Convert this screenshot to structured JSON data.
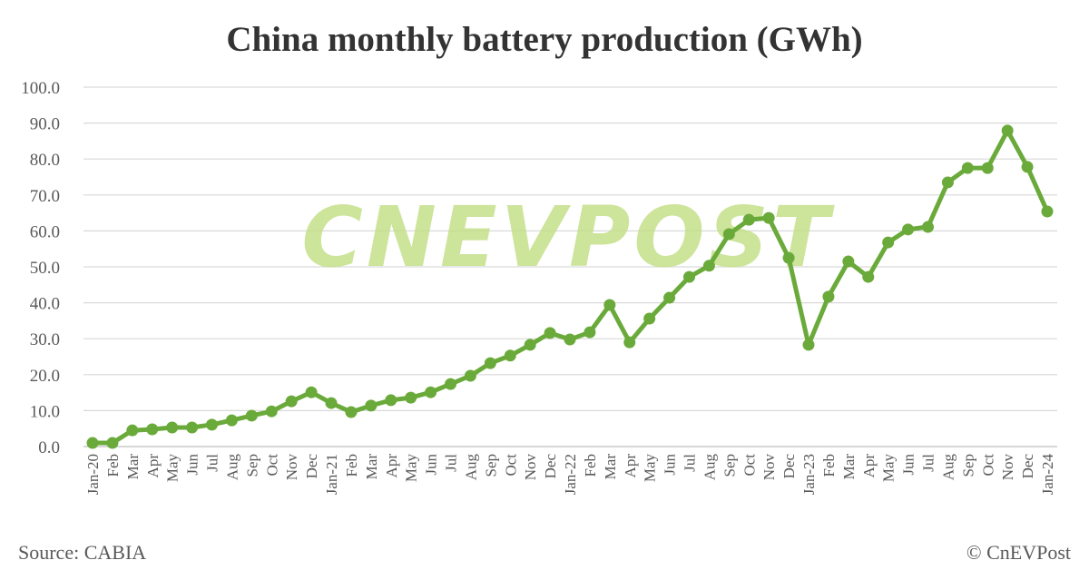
{
  "chart_data": {
    "type": "line",
    "title": "China monthly battery production (GWh)",
    "xlabel": "",
    "ylabel": "",
    "ylim": [
      0,
      100
    ],
    "yticks": [
      "0.0",
      "10.0",
      "20.0",
      "30.0",
      "40.0",
      "50.0",
      "60.0",
      "70.0",
      "80.0",
      "90.0",
      "100.0"
    ],
    "grid": true,
    "categories": [
      "Jan-20",
      "Feb",
      "Mar",
      "Apr",
      "May",
      "Jun",
      "Jul",
      "Aug",
      "Sep",
      "Oct",
      "Nov",
      "Dec",
      "Jan-21",
      "Feb",
      "Mar",
      "Apr",
      "May",
      "Jun",
      "Jul",
      "Aug",
      "Sep",
      "Oct",
      "Nov",
      "Dec",
      "Jan-22",
      "Feb",
      "Mar",
      "Apr",
      "May",
      "Jun",
      "Jul",
      "Aug",
      "Sep",
      "Oct",
      "Nov",
      "Dec",
      "Jan-23",
      "Feb",
      "Mar",
      "Apr",
      "May",
      "Jun",
      "Jul",
      "Aug",
      "Sep",
      "Oct",
      "Nov",
      "Dec",
      "Jan-24"
    ],
    "values": [
      1.0,
      1.0,
      4.5,
      4.8,
      5.3,
      5.3,
      6.1,
      7.3,
      8.6,
      9.8,
      12.6,
      15.1,
      12.1,
      9.6,
      11.4,
      12.9,
      13.6,
      15.1,
      17.4,
      19.7,
      23.2,
      25.3,
      28.3,
      31.6,
      29.8,
      31.8,
      39.4,
      29.0,
      35.6,
      41.4,
      47.2,
      50.3,
      59.1,
      63.1,
      63.6,
      52.5,
      28.3,
      41.7,
      51.5,
      47.2,
      56.8,
      60.4,
      61.1,
      73.5,
      77.5,
      77.5,
      87.9,
      77.8,
      65.4
    ],
    "line_color": "#6aaa3a"
  },
  "source": "Source: CABIA",
  "copyright": "© CnEVPost",
  "watermark": "CNEVPOST",
  "watermark_color": "#c5e08a"
}
